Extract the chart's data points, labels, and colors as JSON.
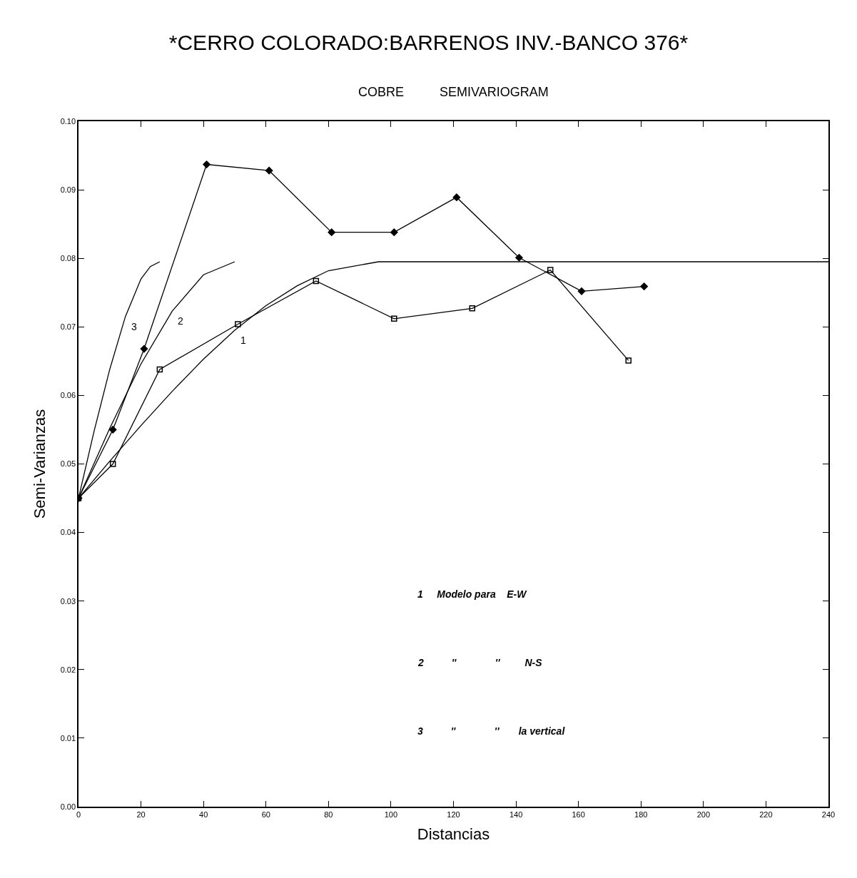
{
  "chart_data": {
    "type": "line",
    "title": "*CERRO COLORADO:BARRENOS INV.-BANCO 376*",
    "subtitle": "COBRE          SEMIVARIOGRAM",
    "xlabel": "Distancias",
    "ylabel": "Semi-Varianzas",
    "xlim": [
      0,
      240
    ],
    "xticks": [
      0,
      20,
      40,
      60,
      80,
      100,
      120,
      140,
      160,
      180,
      200,
      220,
      240
    ],
    "ylim": [
      0,
      0.1
    ],
    "yticks": [
      {
        "value": 0,
        "label": "0.00"
      },
      {
        "value": 0.01,
        "label": "0.01"
      },
      {
        "value": 0.02,
        "label": "0.02"
      },
      {
        "value": 0.03,
        "label": "0.03"
      },
      {
        "value": 0.04,
        "label": "0.04"
      },
      {
        "value": 0.05,
        "label": "0.05"
      },
      {
        "value": 0.06,
        "label": "0.06"
      },
      {
        "value": 0.07,
        "label": "0.07"
      },
      {
        "value": 0.08,
        "label": "0.08"
      },
      {
        "value": 0.09,
        "label": "0.09"
      },
      {
        "value": 0.1,
        "label": "0.10"
      }
    ],
    "line_style": "solid",
    "series": [
      {
        "color": "#000000",
        "marker": "diamond",
        "x": [
          0,
          11,
          21,
          41,
          61,
          81,
          101,
          121,
          141,
          161,
          181
        ],
        "values": [
          0.045,
          0.055,
          0.0668,
          0.0937,
          0.0928,
          0.0838,
          0.0838,
          0.0889,
          0.0801,
          0.0752,
          0.0759
        ]
      },
      {
        "color": "#000000",
        "marker": "square",
        "x": [
          0,
          11,
          26,
          51,
          76,
          101,
          126,
          151,
          176
        ],
        "values": [
          0.045,
          0.05,
          0.0638,
          0.0704,
          0.0767,
          0.0712,
          0.0727,
          0.0783,
          0.0651
        ]
      },
      {
        "color": "#000000",
        "marker": "none",
        "x": [
          0,
          10,
          20,
          30,
          40,
          50,
          60,
          70,
          80,
          96,
          240
        ],
        "values": [
          0.045,
          0.0504,
          0.0556,
          0.0606,
          0.0653,
          0.0695,
          0.0731,
          0.076,
          0.0782,
          0.0795,
          0.0795
        ]
      },
      {
        "color": "#000000",
        "marker": "none",
        "x": [
          0,
          10,
          20,
          30,
          40,
          50
        ],
        "values": [
          0.045,
          0.0552,
          0.0646,
          0.0723,
          0.0776,
          0.0795
        ]
      },
      {
        "color": "#000000",
        "marker": "none",
        "x": [
          0,
          5,
          10,
          15,
          20,
          23,
          26
        ],
        "values": [
          0.045,
          0.0548,
          0.0638,
          0.0715,
          0.077,
          0.0788,
          0.0795
        ]
      }
    ],
    "annotations": [
      {
        "text": "1",
        "x": 50,
        "y": 0.0695
      },
      {
        "text": "2",
        "x": 30,
        "y": 0.0723
      },
      {
        "text": "3",
        "x": 15,
        "y": 0.0715
      },
      "1     Modelo para    E-W",
      "2          ''              ''         N-S",
      "3          ''              ''       la vertical"
    ]
  }
}
